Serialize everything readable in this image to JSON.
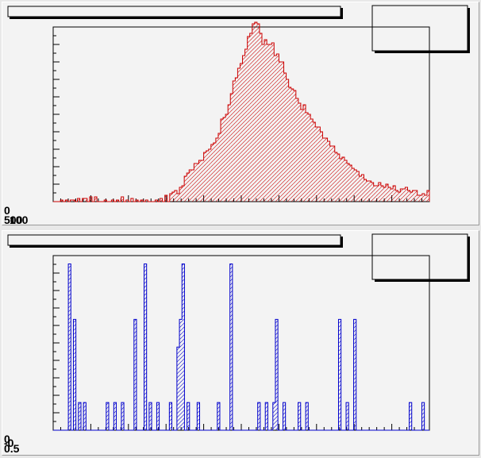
{
  "chart_data": [
    {
      "type": "histogram",
      "color": "#cc0000",
      "fill": "diagonal-hatch",
      "xlim": [
        0,
        100
      ],
      "ylim": [
        0,
        110
      ],
      "origin_labels": [
        "0",
        "500",
        "100"
      ],
      "values": [
        0,
        0,
        0,
        1,
        0,
        1,
        0,
        1,
        1,
        0,
        2,
        0,
        2,
        2,
        0,
        3,
        0,
        3,
        0,
        0,
        0,
        1,
        0,
        0,
        1,
        0,
        1,
        0,
        3,
        0,
        1,
        0,
        2,
        0,
        1,
        0,
        1,
        0,
        1,
        0,
        0,
        0,
        1,
        0,
        2,
        0,
        4,
        0,
        5,
        6,
        7,
        5,
        9,
        10,
        16,
        18,
        20,
        20,
        24,
        24,
        26,
        26,
        31,
        32,
        33,
        36,
        37,
        40,
        43,
        52,
        53,
        55,
        61,
        68,
        76,
        78,
        84,
        87,
        92,
        96,
        104,
        106,
        112,
        113,
        112,
        106,
        99,
        102,
        99,
        99,
        100,
        92,
        93,
        88,
        88,
        81,
        77,
        72,
        71,
        70,
        65,
        62,
        58,
        61,
        56,
        55,
        52,
        50,
        47,
        47,
        44,
        40,
        40,
        38,
        35,
        35,
        31,
        30,
        27,
        28,
        26,
        24,
        23,
        21,
        20,
        19,
        16,
        17,
        14,
        13,
        13,
        12,
        10,
        10,
        12,
        10,
        9,
        11,
        9,
        8,
        10,
        7,
        6,
        8,
        8,
        9,
        7,
        6,
        7,
        7,
        4,
        4,
        5,
        4,
        7
      ]
    },
    {
      "type": "histogram",
      "color": "#0000cc",
      "fill": "diagonal-hatch",
      "xlim": [
        0,
        100
      ],
      "ylim": [
        0,
        6.3
      ],
      "origin_labels": [
        "0",
        "0.5",
        "-0"
      ],
      "values": [
        0,
        0,
        0,
        0,
        0,
        0,
        6,
        0,
        4,
        0,
        1,
        0,
        1,
        0,
        0,
        0,
        0,
        0,
        0,
        0,
        0,
        1,
        0,
        0,
        1,
        0,
        0,
        1,
        0,
        0,
        0,
        0,
        4,
        0,
        0,
        0,
        6,
        0,
        1,
        0,
        0,
        1,
        0,
        0,
        0,
        0,
        1,
        0,
        0,
        3,
        4,
        6,
        0,
        1,
        0,
        0,
        0,
        1,
        0,
        0,
        0,
        0,
        0,
        0,
        0,
        1,
        0,
        0,
        0,
        0,
        6,
        0,
        0,
        0,
        0,
        0,
        0,
        0,
        0,
        0,
        0,
        1,
        0,
        0,
        1,
        0,
        0,
        1,
        4,
        0,
        0,
        1,
        0,
        0,
        0,
        0,
        0,
        1,
        0,
        0,
        1,
        0,
        0,
        0,
        0,
        0,
        0,
        0,
        0,
        0,
        0,
        0,
        0,
        4,
        0,
        0,
        1,
        0,
        0,
        4,
        0,
        0,
        0,
        0,
        0,
        0,
        0,
        0,
        0,
        0,
        0,
        0,
        0,
        0,
        0,
        0,
        0,
        0,
        0,
        0,
        0,
        1,
        0,
        0,
        0,
        0,
        1,
        0,
        0
      ]
    }
  ]
}
